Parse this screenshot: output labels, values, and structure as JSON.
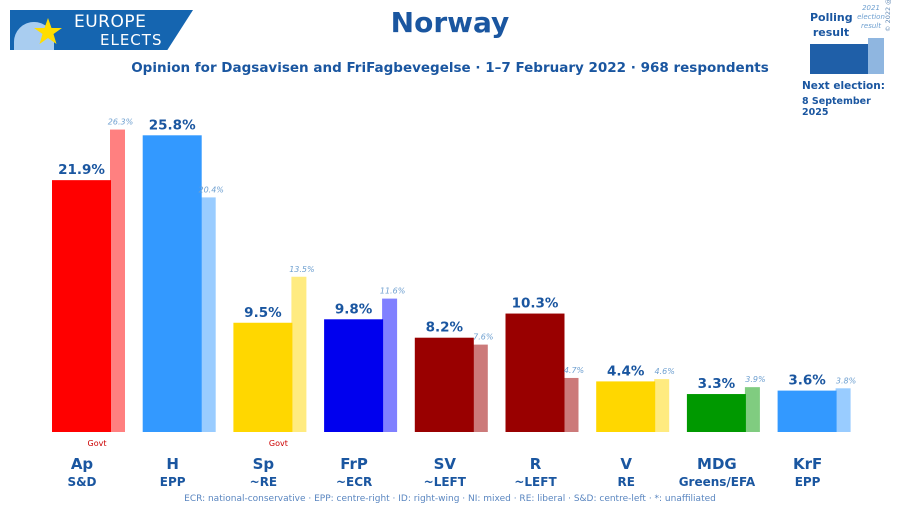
{
  "logo": {
    "line1": "EUROPE",
    "line2": "ELECTS"
  },
  "title": "Norway",
  "subtitle": "Opinion for Dagsavisen and FriFagbevegelse · 1–7 February 2022 · 968 respondents",
  "legend": {
    "polling_label": "Polling result",
    "previous_label": "2021 election result",
    "copyright": "© 2022 @EuropeElects"
  },
  "next_election": {
    "label": "Next election:",
    "date": "8 September 2025"
  },
  "footer": "ECR: national-conservative · EPP: centre-right · ID: right-wing · NI: mixed · RE: liberal · S&D: centre-left · *: unaffiliated",
  "colors": {
    "brand": "#1565b0",
    "text": "#1a56a0",
    "govt": "#cc0000"
  },
  "chart_data": {
    "type": "bar",
    "categories": [
      "Ap",
      "H",
      "Sp",
      "FrP",
      "SV",
      "R",
      "V",
      "MDG",
      "KrF"
    ],
    "groups": [
      "S&D",
      "EPP",
      "~RE",
      "~ECR",
      "~LEFT",
      "~LEFT",
      "RE",
      "Greens/EFA",
      "EPP"
    ],
    "govt": [
      true,
      false,
      true,
      false,
      false,
      false,
      false,
      false,
      false
    ],
    "govt_label": "Govt",
    "series": [
      {
        "name": "Polling result",
        "values": [
          21.9,
          25.8,
          9.5,
          9.8,
          8.2,
          10.3,
          4.4,
          3.3,
          3.6
        ],
        "labels": [
          "21.9%",
          "25.8%",
          "9.5%",
          "9.8%",
          "8.2%",
          "10.3%",
          "4.4%",
          "3.3%",
          "3.6%"
        ]
      },
      {
        "name": "2021 election result",
        "values": [
          26.3,
          20.4,
          13.5,
          11.6,
          7.6,
          4.7,
          4.6,
          3.9,
          3.8
        ],
        "labels": [
          "26.3%",
          "20.4%",
          "13.5%",
          "11.6%",
          "7.6%",
          "4.7%",
          "4.6%",
          "3.9%",
          "3.8%"
        ]
      }
    ],
    "bar_colors": [
      "#ff0000",
      "#3399ff",
      "#ffd700",
      "#0000ee",
      "#990000",
      "#990000",
      "#ffd700",
      "#009900",
      "#3399ff"
    ],
    "prev_colors": [
      "#ff8080",
      "#99ccff",
      "#ffeb80",
      "#8080ff",
      "#cc7a7a",
      "#cc7a7a",
      "#ffeb80",
      "#80cc80",
      "#99ccff"
    ],
    "ylim": [
      0,
      30
    ],
    "grid": false
  }
}
